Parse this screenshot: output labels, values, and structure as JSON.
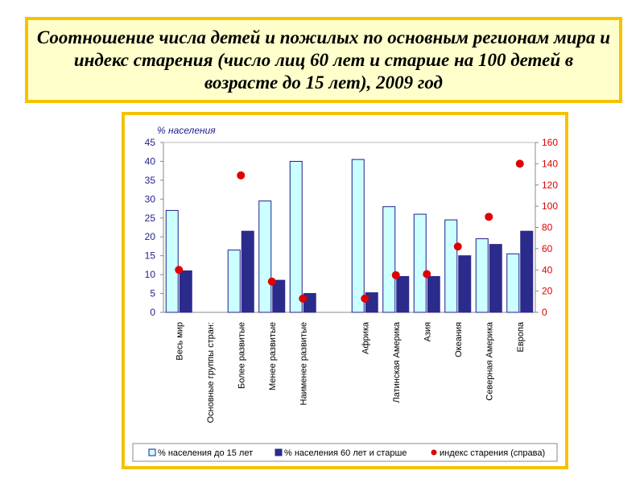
{
  "title": "Соотношение числа детей и пожилых по основным регионам мира и индекс старения (число лиц 60 лет и старше на 100 детей в возрасте до 15 лет), 2009 год",
  "colors": {
    "frame": "#f5c200",
    "title_bg": "#ffffcc",
    "children_fill": "#ccffff",
    "children_stroke": "#1f1f8c",
    "elderly": "#2b2b8c",
    "index": "#e00000"
  },
  "chart_data": {
    "type": "bar",
    "ylabel": "% населения",
    "ylim": [
      0,
      45
    ],
    "yticks": [
      0,
      5,
      10,
      15,
      20,
      25,
      30,
      35,
      40,
      45
    ],
    "y2lim": [
      0,
      160
    ],
    "y2ticks": [
      0,
      20,
      40,
      60,
      80,
      100,
      120,
      140,
      160
    ],
    "categories": [
      "Весь мир",
      "Основные группы стран:",
      "Более развитые",
      "Менее развитые",
      "Наименее развитые",
      "",
      "Африка",
      "Латинская Америка",
      "Азия",
      "Океания",
      "Северная Америка",
      "Европа"
    ],
    "series": [
      {
        "name": "% населения до 15 лет",
        "axis": "left",
        "kind": "bar",
        "values": [
          27,
          null,
          16.5,
          29.5,
          40,
          null,
          40.5,
          28,
          26,
          24.5,
          19.5,
          15.5
        ]
      },
      {
        "name": "% населения 60 лет и старше",
        "axis": "left",
        "kind": "bar",
        "values": [
          11,
          null,
          21.5,
          8.5,
          5,
          null,
          5.2,
          9.5,
          9.5,
          15,
          18,
          21.5
        ]
      },
      {
        "name": "индекс старения (справа)",
        "axis": "right",
        "kind": "point",
        "values": [
          40,
          null,
          129,
          29,
          13,
          null,
          13,
          35,
          36,
          62,
          90,
          140
        ]
      }
    ],
    "legend": [
      "% населения до 15 лет",
      "% населения 60 лет и старше",
      "индекс старения (справа)"
    ],
    "legend_position": "bottom",
    "grid": false
  }
}
